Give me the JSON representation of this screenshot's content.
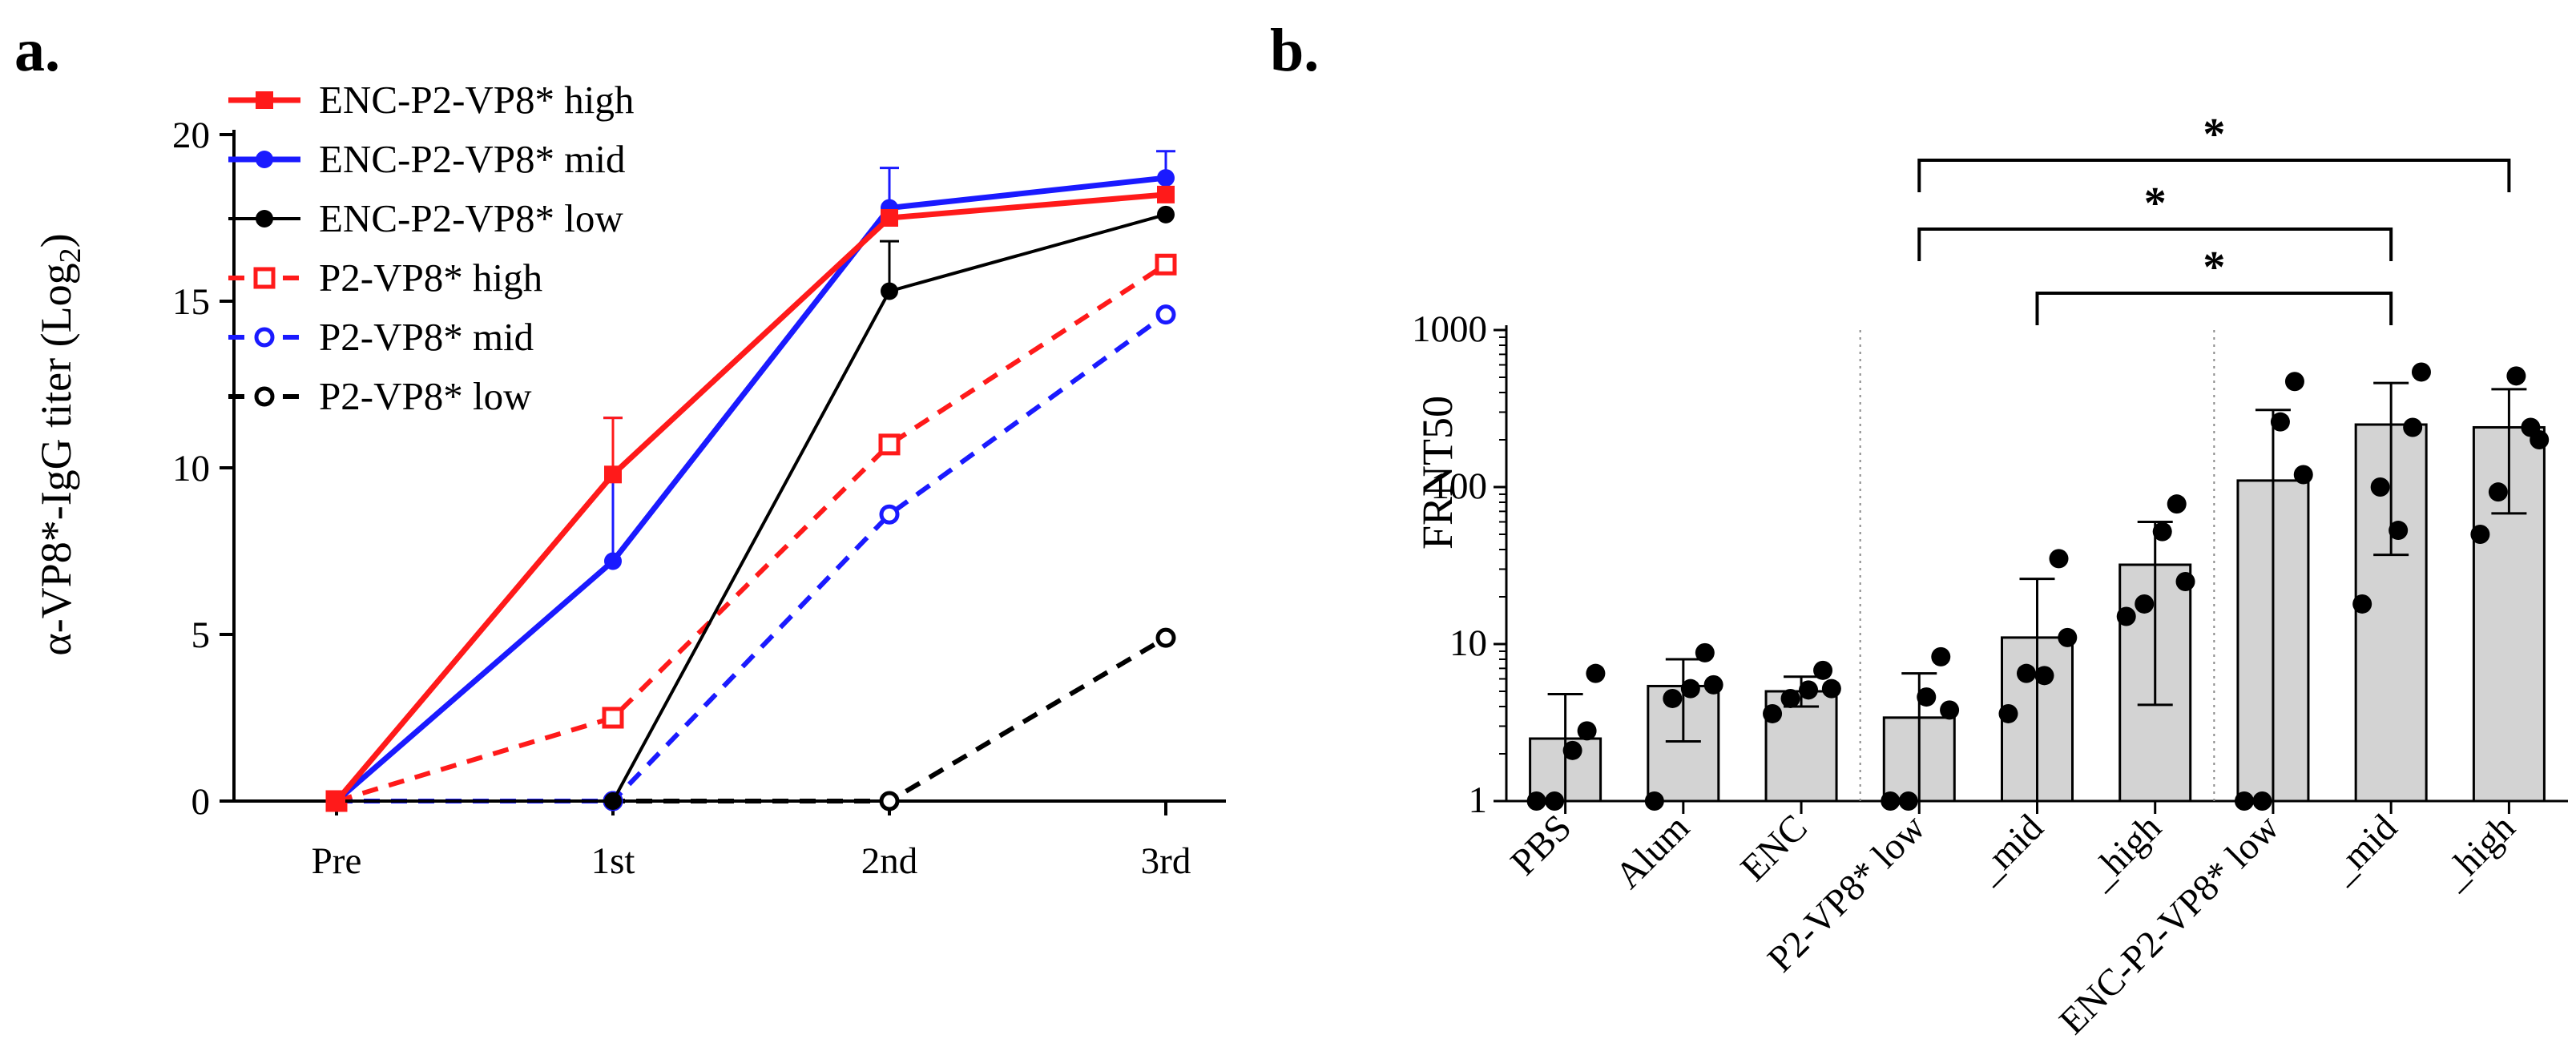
{
  "chart_data": [
    {
      "panel": "a.",
      "type": "line",
      "ylabel": "α-VP8*-IgG titer (Log",
      "ylabel_subscript": "2",
      "ylabel_close": ")",
      "xlabel": "",
      "categories": [
        "Pre",
        "1st",
        "2nd",
        "3rd"
      ],
      "ylim": [
        0,
        20
      ],
      "yticks": [
        0,
        5,
        10,
        15,
        20
      ],
      "legend_position": "top-left",
      "series": [
        {
          "name": "ENC-P2-VP8* high",
          "color": "#ff1a1a",
          "style": "solid",
          "marker": "filled-square",
          "values": [
            0,
            9.8,
            17.5,
            18.2
          ],
          "errors": [
            0,
            1.7,
            0,
            0
          ]
        },
        {
          "name": "ENC-P2-VP8* mid",
          "color": "#1a1aff",
          "style": "solid",
          "marker": "filled-circle",
          "values": [
            0,
            7.2,
            17.8,
            18.7
          ],
          "errors": [
            0,
            4.3,
            1.2,
            0.8
          ]
        },
        {
          "name": "ENC-P2-VP8* low",
          "color": "#000000",
          "style": "solid-thin",
          "marker": "filled-circle",
          "values": [
            0,
            0,
            15.3,
            17.6
          ],
          "errors": [
            0,
            0,
            1.5,
            0
          ]
        },
        {
          "name": "P2-VP8* high",
          "color": "#ff1a1a",
          "style": "dashed",
          "marker": "open-square",
          "values": [
            0,
            2.5,
            10.7,
            16.1
          ],
          "errors": [
            0,
            0,
            0,
            0
          ]
        },
        {
          "name": "P2-VP8* mid",
          "color": "#1a1aff",
          "style": "dashed",
          "marker": "open-circle",
          "values": [
            0,
            0,
            8.6,
            14.6
          ],
          "errors": [
            0,
            0,
            0,
            0
          ]
        },
        {
          "name": "P2-VP8* low",
          "color": "#000000",
          "style": "dashed",
          "marker": "open-circle",
          "values": [
            0,
            0,
            0,
            4.9
          ],
          "errors": [
            0,
            0,
            0,
            0
          ]
        }
      ]
    },
    {
      "panel": "b.",
      "type": "bar",
      "ylabel": "FRNT50",
      "xlabel": "",
      "yscale": "log",
      "ylim": [
        1,
        1000
      ],
      "yticks": [
        1,
        10,
        100,
        1000
      ],
      "ytick_labels": [
        "1",
        "10",
        "100",
        "1000"
      ],
      "bar_color": "#d3d3d3",
      "categories": [
        "PBS",
        "Alum",
        "ENC",
        "P2-VP8* low",
        "_mid",
        "_high",
        "ENC-P2-VP8* low",
        "_mid",
        "_high"
      ],
      "values": [
        2.5,
        5.4,
        5.0,
        3.4,
        11,
        32,
        110,
        250,
        240
      ],
      "err_low": [
        1,
        2.4,
        4.0,
        1,
        1,
        4.1,
        1,
        37,
        68
      ],
      "err_high": [
        4.8,
        8.0,
        6.2,
        6.5,
        26,
        60,
        310,
        460,
        420
      ],
      "points": [
        [
          1,
          1,
          2.1,
          2.8,
          6.5
        ],
        [
          1,
          4.5,
          5.2,
          8.8,
          5.5
        ],
        [
          3.6,
          4.5,
          5.1,
          6.8,
          5.2
        ],
        [
          1,
          1,
          4.6,
          8.3,
          3.8
        ],
        [
          3.6,
          6.5,
          6.3,
          35,
          11
        ],
        [
          15,
          18,
          52,
          78,
          25
        ],
        [
          1,
          1,
          260,
          470,
          120
        ],
        [
          18,
          100,
          53,
          240,
          540
        ],
        [
          50,
          93,
          510,
          240,
          200
        ]
      ],
      "group_separators_after": [
        2,
        5
      ],
      "significance": [
        {
          "from": 3,
          "to": 8,
          "label": "*"
        },
        {
          "from": 3,
          "to": 7,
          "label": "*"
        },
        {
          "from": 4,
          "to": 7,
          "label": "*"
        }
      ]
    }
  ]
}
